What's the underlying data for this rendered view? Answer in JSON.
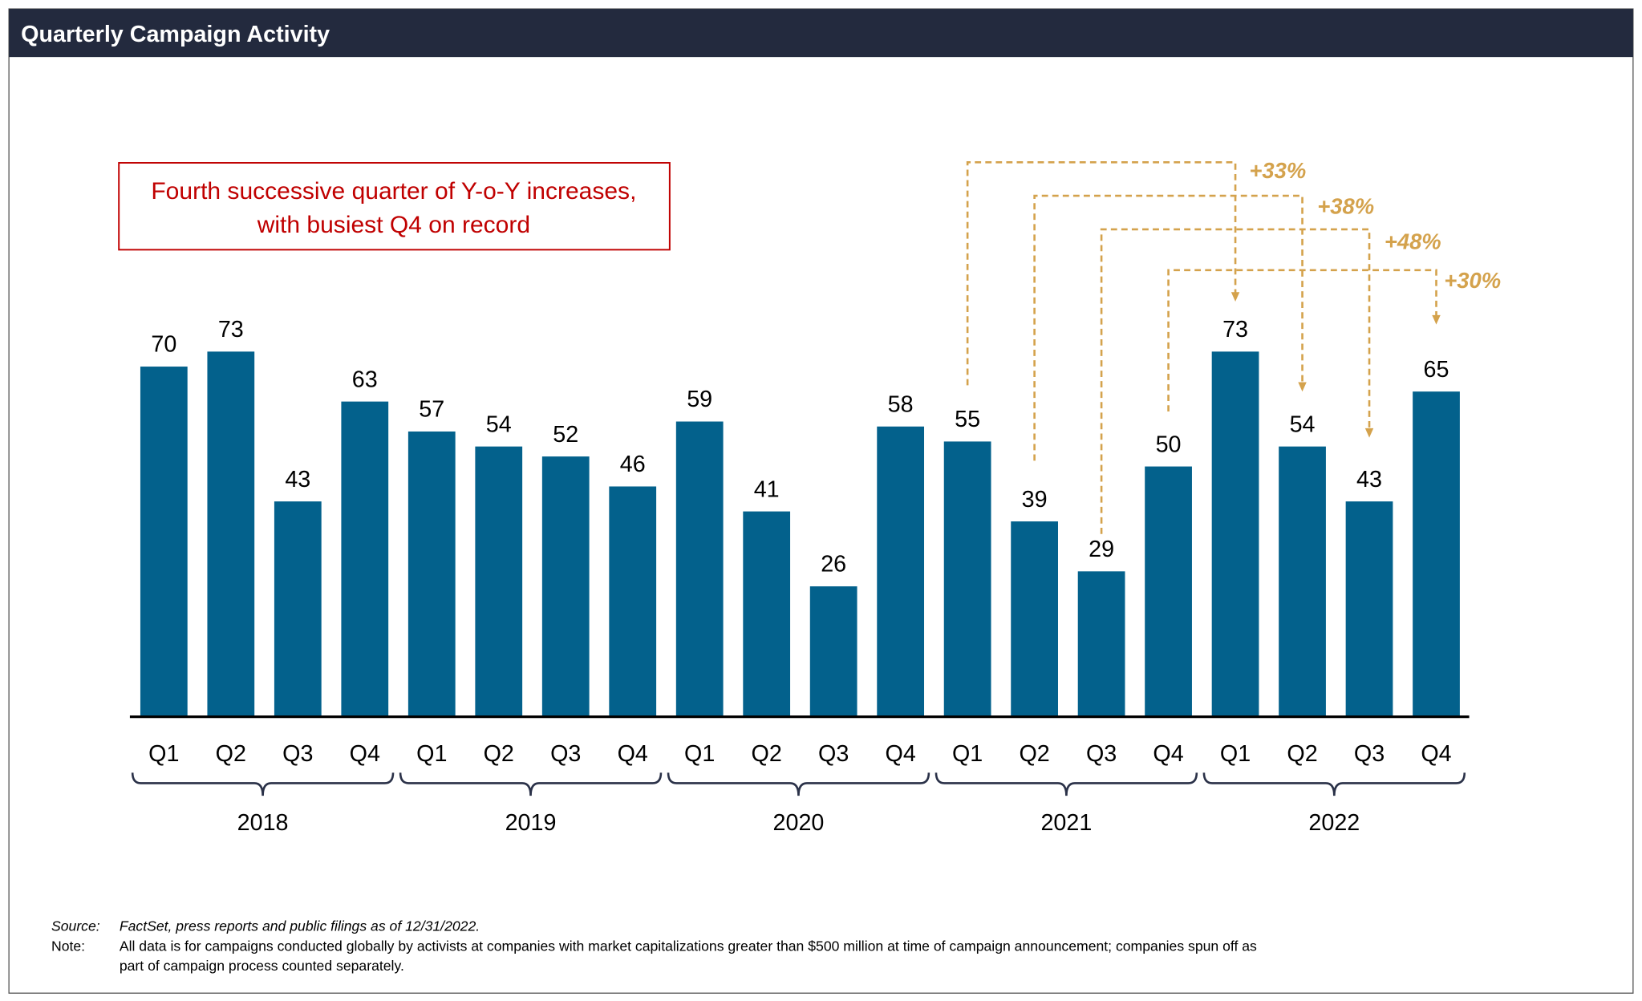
{
  "header": {
    "title": "Quarterly Campaign Activity"
  },
  "callout": {
    "line1": "Fourth successive quarter of Y-o-Y increases,",
    "line2": "with busiest Q4 on record"
  },
  "colors": {
    "bar": "#03618c",
    "header": "#232a3e",
    "callout": "#c00000",
    "arrow": "#d4a24c"
  },
  "chart_data": {
    "type": "bar",
    "title": "Quarterly Campaign Activity",
    "xlabel": "",
    "ylabel": "",
    "ylim": [
      0,
      80
    ],
    "grid": false,
    "categories": [
      "Q1",
      "Q2",
      "Q3",
      "Q4",
      "Q1",
      "Q2",
      "Q3",
      "Q4",
      "Q1",
      "Q2",
      "Q3",
      "Q4",
      "Q1",
      "Q2",
      "Q3",
      "Q4",
      "Q1",
      "Q2",
      "Q3",
      "Q4"
    ],
    "years": [
      "2018",
      "2019",
      "2020",
      "2021",
      "2022"
    ],
    "values": [
      70,
      73,
      43,
      63,
      57,
      54,
      52,
      46,
      59,
      41,
      26,
      58,
      55,
      39,
      29,
      50,
      73,
      54,
      43,
      65
    ],
    "annotations": [
      {
        "from_index": 12,
        "to_index": 16,
        "label": "+33%"
      },
      {
        "from_index": 13,
        "to_index": 17,
        "label": "+38%"
      },
      {
        "from_index": 14,
        "to_index": 18,
        "label": "+48%"
      },
      {
        "from_index": 15,
        "to_index": 19,
        "label": "+30%"
      }
    ]
  },
  "footer": {
    "source_label": "Source:",
    "source_text": "FactSet, press reports and public filings as of 12/31/2022.",
    "note_label": "Note:",
    "note_line1": "All data is for campaigns conducted globally by activists at companies with market capitalizations greater than $500 million at time of campaign announcement; companies spun off as",
    "note_line2": "part of campaign process counted separately."
  }
}
